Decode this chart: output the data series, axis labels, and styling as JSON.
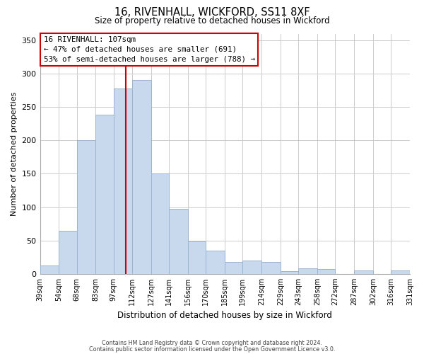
{
  "title": "16, RIVENHALL, WICKFORD, SS11 8XF",
  "subtitle": "Size of property relative to detached houses in Wickford",
  "xlabel": "Distribution of detached houses by size in Wickford",
  "ylabel": "Number of detached properties",
  "bar_edges": [
    39,
    54,
    68,
    83,
    97,
    112,
    127,
    141,
    156,
    170,
    185,
    199,
    214,
    229,
    243,
    258,
    272,
    287,
    302,
    316,
    331
  ],
  "bar_heights": [
    13,
    65,
    200,
    238,
    278,
    291,
    150,
    97,
    49,
    35,
    18,
    20,
    18,
    4,
    8,
    7,
    0,
    5,
    0,
    5
  ],
  "bar_color": "#c8d9ed",
  "bar_edgecolor": "#9ab5d0",
  "vline_x": 107,
  "vline_color": "#cc0000",
  "annotation_title": "16 RIVENHALL: 107sqm",
  "annotation_line1": "← 47% of detached houses are smaller (691)",
  "annotation_line2": "53% of semi-detached houses are larger (788) →",
  "annotation_box_color": "#ffffff",
  "annotation_box_edgecolor": "#cc0000",
  "tick_labels": [
    "39sqm",
    "54sqm",
    "68sqm",
    "83sqm",
    "97sqm",
    "112sqm",
    "127sqm",
    "141sqm",
    "156sqm",
    "170sqm",
    "185sqm",
    "199sqm",
    "214sqm",
    "229sqm",
    "243sqm",
    "258sqm",
    "272sqm",
    "287sqm",
    "302sqm",
    "316sqm",
    "331sqm"
  ],
  "ylim": [
    0,
    360
  ],
  "yticks": [
    0,
    50,
    100,
    150,
    200,
    250,
    300,
    350
  ],
  "footnote1": "Contains HM Land Registry data © Crown copyright and database right 2024.",
  "footnote2": "Contains public sector information licensed under the Open Government Licence v3.0.",
  "bg_color": "#ffffff",
  "grid_color": "#cccccc"
}
